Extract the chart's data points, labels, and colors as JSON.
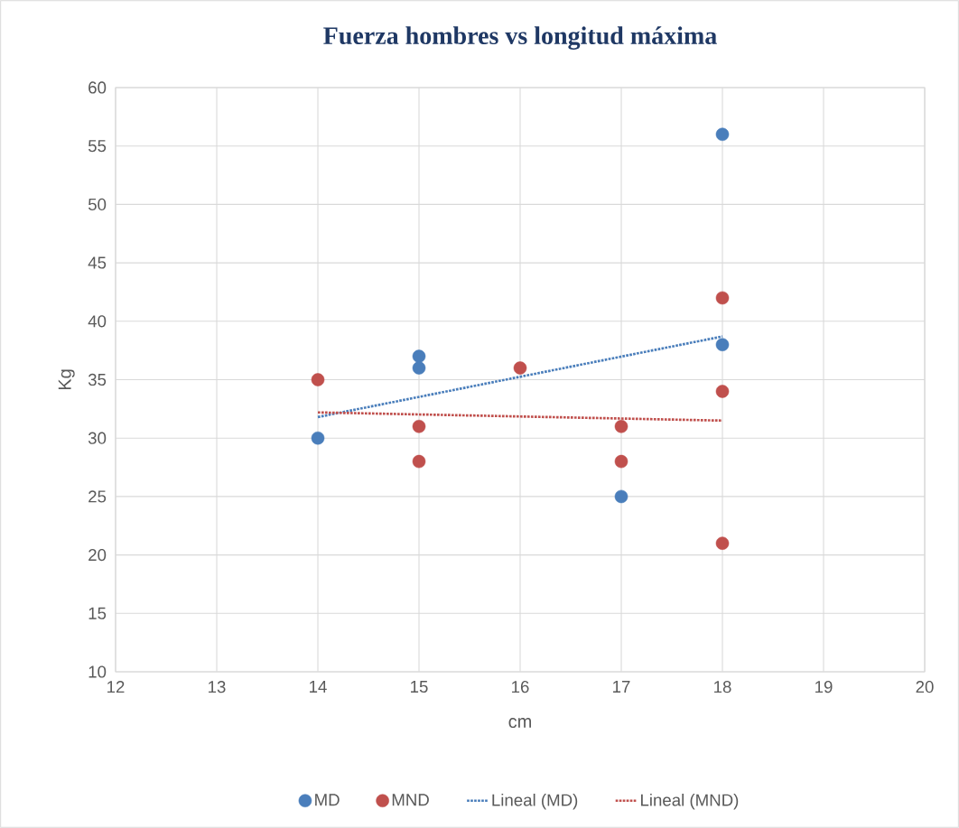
{
  "chart_data": {
    "type": "scatter",
    "title": "Fuerza hombres vs longitud máxima",
    "xlabel": "cm",
    "ylabel": "Kg",
    "xlim": [
      12,
      20
    ],
    "xticks": [
      12,
      13,
      14,
      15,
      16,
      17,
      18,
      19,
      20
    ],
    "ylim": [
      10,
      60
    ],
    "yticks": [
      10,
      15,
      20,
      25,
      30,
      35,
      40,
      45,
      50,
      55,
      60
    ],
    "grid": true,
    "legend": "bottom",
    "series": [
      {
        "name": "MD",
        "type": "scatter",
        "marker": "circle",
        "color": "#4a7ebb",
        "x": [
          14,
          15,
          15,
          17,
          18,
          18
        ],
        "values": [
          30,
          37,
          36,
          25,
          56,
          38
        ]
      },
      {
        "name": "MND",
        "type": "scatter",
        "marker": "circle",
        "color": "#c0504d",
        "x": [
          14,
          15,
          15,
          16,
          17,
          17,
          18,
          18,
          18
        ],
        "values": [
          35,
          31,
          28,
          36,
          31,
          28,
          42,
          34,
          21
        ]
      },
      {
        "name": "Lineal (MD)",
        "type": "line",
        "marker": "none",
        "line_style": "dotted",
        "color": "#4a7ebb",
        "x": [
          14,
          18
        ],
        "values": [
          31.8,
          38.7
        ]
      },
      {
        "name": "Lineal (MND)",
        "type": "line",
        "marker": "none",
        "line_style": "dotted",
        "color": "#c0504d",
        "x": [
          14,
          18
        ],
        "values": [
          32.2,
          31.5
        ]
      }
    ]
  }
}
